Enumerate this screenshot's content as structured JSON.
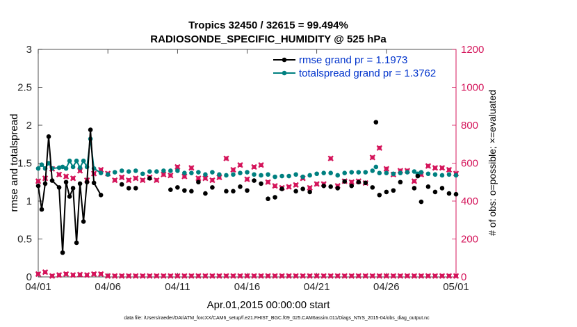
{
  "chart_data": {
    "type": "line",
    "title_line1": "Tropics 32450 / 32615 = 99.494%",
    "title_line2": "RADIOSONDE_SPECIFIC_HUMIDITY @ 525 hPa",
    "xlabel": "Apr.01,2015 00:00:00 start",
    "ylabel_left": "rmse and totalspread",
    "ylabel_right": "# of obs: o=possible; ×=evaluated",
    "footer": "data file: /Users/raeder/DAI/ATM_forcXX/CAM6_setup/f.e21.FHIST_BGC.f09_025.CAM6assim.011/Diags_NTrS_2015-04/obs_diag_output.nc",
    "xlim": [
      0,
      30
    ],
    "ylim_left": [
      0,
      3
    ],
    "ylim_right": [
      0,
      1200
    ],
    "x_ticks": [
      0,
      5,
      10,
      15,
      20,
      25,
      30
    ],
    "x_tick_labels": [
      "04/01",
      "04/06",
      "04/11",
      "04/16",
      "04/21",
      "04/26",
      "05/01"
    ],
    "y_ticks_left": [
      "0",
      "0.5",
      "1",
      "1.5",
      "2",
      "2.5",
      "3"
    ],
    "y_ticks_right": [
      "0",
      "200",
      "400",
      "600",
      "800",
      "1000",
      "1200"
    ],
    "colors": {
      "rmse": "#000000",
      "spread": "#008080",
      "obs": "#d4145a",
      "legend_text": "#0033cc"
    },
    "series": [
      {
        "name": "rmse grand pr = 1.1973",
        "key": "rmse",
        "x": [
          0,
          0.25,
          0.5,
          0.75,
          1,
          1.5,
          1.75,
          2,
          2.25,
          2.5,
          2.75,
          3,
          3.25,
          3.5,
          3.75,
          4,
          4.25,
          4.5,
          5,
          5.5,
          6,
          6.5,
          7,
          7.5,
          8,
          8.5,
          9,
          9.5,
          10,
          10.5,
          11,
          11.5,
          12,
          12.5,
          13,
          13.5,
          14,
          14.5,
          15,
          15.5,
          16,
          16.5,
          17,
          17.5,
          18,
          18.5,
          19,
          19.5,
          20,
          20.5,
          21,
          21.5,
          22,
          22.5,
          23,
          23.5,
          24,
          24.25,
          24.5,
          25,
          25.5,
          26,
          26.5,
          27,
          27.25,
          27.5,
          28,
          28.5,
          29,
          29.5,
          30
        ],
        "y": [
          1.2,
          0.89,
          1.23,
          1.85,
          1.27,
          1.18,
          0.32,
          1.25,
          1.06,
          1.17,
          0.45,
          1.23,
          0.73,
          1.25,
          1.94,
          1.24,
          null,
          1.08,
          null,
          null,
          1.22,
          1.17,
          1.17,
          null,
          1.3,
          null,
          null,
          1.15,
          1.18,
          1.14,
          1.13,
          1.25,
          1.1,
          1.18,
          null,
          1.13,
          1.13,
          1.19,
          1.14,
          1.27,
          1.23,
          1.03,
          1.05,
          1.16,
          null,
          1.13,
          1.16,
          1.12,
          null,
          1.2,
          1.19,
          1.17,
          1.26,
          1.2,
          1.25,
          1.24,
          1.18,
          2.04,
          1.08,
          1.12,
          1.14,
          1.25,
          null,
          1.17,
          1.33,
          0.99,
          1.19,
          1.12,
          1.17,
          1.1,
          1.09
        ],
        "connected_until": 4.5
      },
      {
        "name": "totalspread grand pr = 1.3762",
        "key": "spread",
        "x": [
          0,
          0.25,
          0.5,
          0.75,
          1,
          1.5,
          1.75,
          2,
          2.25,
          2.5,
          2.75,
          3,
          3.25,
          3.5,
          3.75,
          4,
          4.25,
          4.5,
          5,
          5.5,
          6,
          6.5,
          7,
          7.5,
          8,
          8.5,
          9,
          9.5,
          10,
          10.5,
          11,
          11.5,
          12,
          12.5,
          13,
          13.5,
          14,
          14.5,
          15,
          15.5,
          16,
          16.5,
          17,
          17.5,
          18,
          18.5,
          19,
          19.5,
          20,
          20.5,
          21,
          21.5,
          22,
          22.5,
          23,
          23.5,
          24,
          24.25,
          24.5,
          25,
          25.5,
          26,
          26.5,
          27,
          27.25,
          27.5,
          28,
          28.5,
          29,
          29.5,
          30
        ],
        "y": [
          1.43,
          1.48,
          1.43,
          1.5,
          1.43,
          1.44,
          1.45,
          1.43,
          1.53,
          1.45,
          1.53,
          1.44,
          1.53,
          1.45,
          1.82,
          1.43,
          null,
          1.37,
          1.35,
          1.38,
          1.4,
          1.39,
          1.4,
          1.36,
          1.39,
          1.39,
          1.4,
          1.4,
          1.4,
          1.37,
          1.37,
          1.38,
          1.35,
          1.38,
          1.35,
          1.34,
          1.35,
          1.37,
          1.38,
          1.35,
          1.34,
          1.35,
          1.32,
          1.33,
          1.33,
          1.35,
          1.32,
          1.34,
          1.36,
          1.37,
          1.37,
          1.34,
          1.37,
          1.38,
          1.38,
          1.38,
          1.4,
          1.45,
          1.37,
          1.37,
          1.36,
          1.37,
          1.38,
          1.39,
          1.36,
          1.38,
          1.36,
          1.35,
          1.34,
          1.35,
          1.34
        ],
        "connected_until": 4.5
      },
      {
        "name": "possible obs",
        "key": "possible",
        "x": [
          0,
          0.5,
          1,
          1.5,
          2,
          2.5,
          3,
          3.5,
          4,
          4.5,
          5,
          5.5,
          6,
          6.5,
          7,
          7.5,
          8,
          8.5,
          9,
          9.5,
          10,
          10.5,
          11,
          11.5,
          12,
          12.5,
          13,
          13.5,
          14,
          14.5,
          15,
          15.5,
          16,
          16.5,
          17,
          17.5,
          18,
          18.5,
          19,
          19.5,
          20,
          20.5,
          21,
          21.5,
          22,
          22.5,
          23,
          23.5,
          24,
          24.5,
          25,
          25.5,
          26,
          26.5,
          27,
          27.5,
          28,
          28.5,
          29,
          29.5,
          30
        ],
        "y": [
          505,
          520,
          570,
          540,
          530,
          520,
          560,
          510,
          545,
          565,
          545,
          510,
          525,
          510,
          520,
          510,
          525,
          510,
          540,
          535,
          580,
          530,
          575,
          520,
          520,
          510,
          525,
          625,
          565,
          590,
          515,
          580,
          590,
          500,
          480,
          470,
          475,
          485,
          520,
          470,
          490,
          490,
          625,
          480,
          505,
          500,
          505,
          495,
          630,
          680,
          570,
          540,
          560,
          560,
          505,
          540,
          585,
          575,
          575,
          565,
          545
        ],
        "evaluated": [
          505,
          520,
          570,
          540,
          530,
          520,
          560,
          510,
          545,
          565,
          545,
          510,
          525,
          510,
          520,
          510,
          525,
          510,
          540,
          535,
          580,
          530,
          575,
          520,
          520,
          510,
          525,
          625,
          565,
          590,
          515,
          580,
          590,
          500,
          480,
          470,
          475,
          485,
          520,
          470,
          490,
          490,
          625,
          480,
          505,
          500,
          505,
          495,
          630,
          680,
          570,
          540,
          560,
          560,
          505,
          540,
          585,
          575,
          575,
          565,
          545
        ],
        "low": [
          15,
          25,
          5,
          10,
          15,
          10,
          12,
          10,
          15,
          15,
          5,
          5,
          5,
          5,
          5,
          5,
          5,
          5,
          5,
          5,
          5,
          5,
          5,
          5,
          5,
          5,
          5,
          5,
          5,
          5,
          5,
          5,
          5,
          5,
          5,
          5,
          5,
          5,
          5,
          5,
          5,
          5,
          5,
          5,
          5,
          5,
          5,
          5,
          5,
          5,
          5,
          5,
          5,
          5,
          5,
          5,
          5,
          5,
          5,
          5,
          5
        ]
      }
    ]
  }
}
